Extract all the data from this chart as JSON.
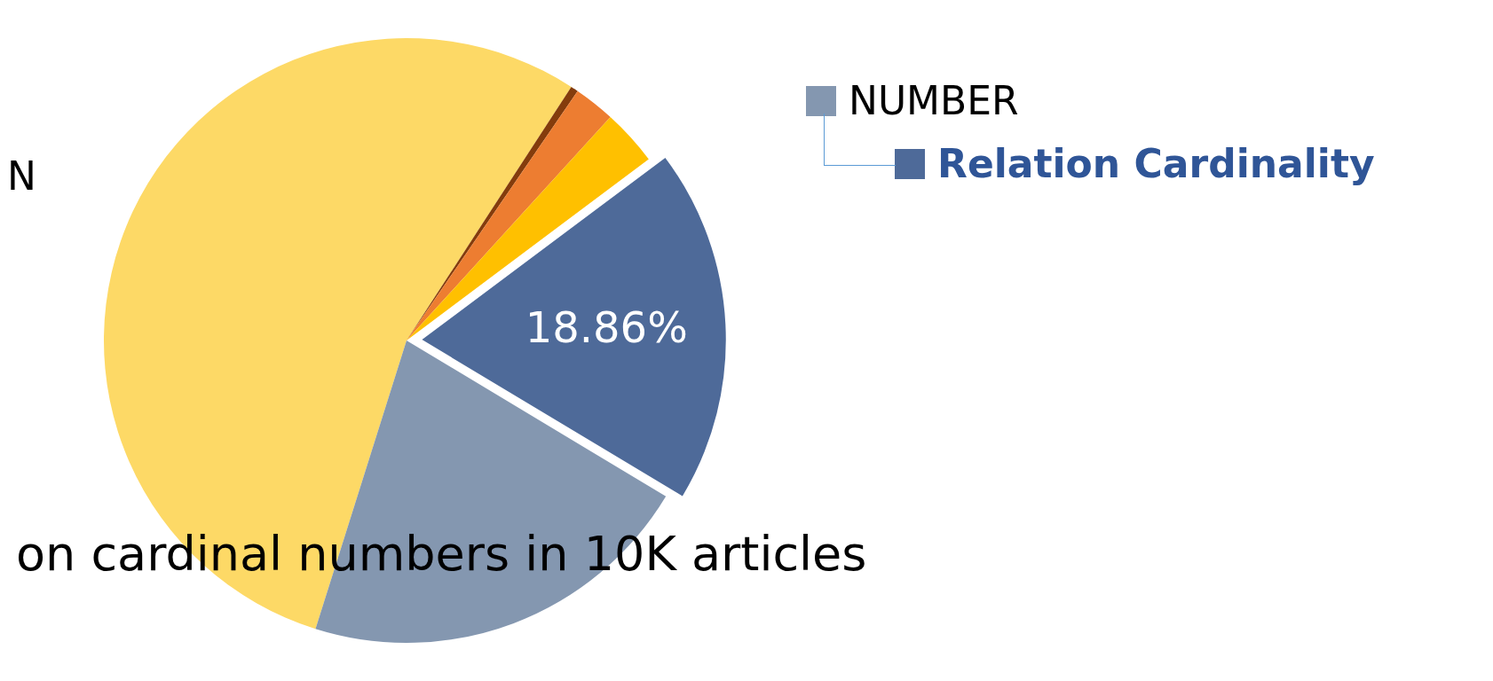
{
  "chart_data": {
    "type": "pie",
    "title": "on cardinal numbers in 10K articles",
    "annotations": [
      "N"
    ],
    "categories": [
      null,
      null,
      null,
      null,
      "Relation Cardinality",
      "NUMBER"
    ],
    "values": [
      54.3,
      0.4,
      2.2,
      3.0,
      18.86,
      21.24
    ],
    "colors": [
      "#fdd966",
      "#843c0c",
      "#ed7d31",
      "#ffc000",
      "#4e6a99",
      "#8497b0"
    ],
    "value_labels": [
      null,
      null,
      null,
      null,
      "18.86%",
      null
    ],
    "legend": "top right"
  }
}
